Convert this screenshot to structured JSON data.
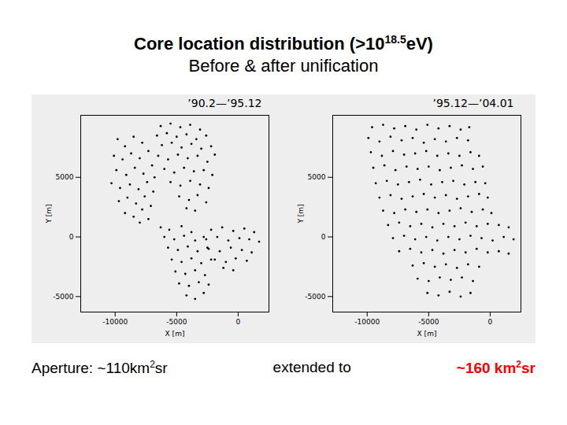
{
  "slide": {
    "title": [
      {
        "text": "Core location distribution (>10"
      },
      {
        "text": "18.5",
        "sup": true
      },
      {
        "text": "eV)"
      }
    ],
    "subtitle": "Before & after unification",
    "caption": [
      {
        "segments": [
          {
            "text": "Aperture: ~110km"
          },
          {
            "text": "2",
            "sup": true
          },
          {
            "text": "sr"
          }
        ]
      },
      {
        "segments": [
          {
            "text": "extended to"
          }
        ]
      },
      {
        "segments": [
          {
            "text": "~160 km"
          },
          {
            "text": "2",
            "sup": true
          },
          {
            "text": "sr"
          }
        ],
        "color": "#ff0000"
      }
    ]
  },
  "chart_data": [
    {
      "type": "scatter",
      "title": "’90.2—’95.12",
      "x_label": "X [m]",
      "y_label": "Y [m]",
      "color": "#000000",
      "marker": "circle",
      "xlim": [
        -12800,
        2500
      ],
      "ylim": [
        -6300,
        10200
      ],
      "xticks": [
        -10000,
        -5000,
        0
      ],
      "yticks": [
        -5000,
        0,
        5000
      ],
      "x": [
        -9800,
        -9200,
        -8500,
        -7800,
        -10100,
        -9400,
        -8700,
        -8000,
        -7300,
        -9900,
        -9100,
        -8400,
        -7700,
        -7000,
        -10300,
        -9600,
        -8800,
        -8100,
        -7400,
        -6800,
        -9700,
        -9000,
        -8300,
        -7600,
        -6900,
        -9200,
        -8500,
        -7800,
        -7100,
        -8000,
        -7300,
        -6300,
        -5500,
        -4700,
        -3900,
        -3100,
        -6600,
        -5800,
        -5000,
        -4200,
        -3400,
        -2600,
        -6200,
        -5400,
        -4600,
        -3800,
        -3000,
        -2200,
        -6500,
        -5700,
        -4900,
        -4100,
        -3300,
        -2500,
        -1900,
        -6000,
        -5200,
        -4400,
        -3600,
        -2800,
        -2100,
        -5500,
        -4700,
        -3900,
        -3100,
        -2400,
        -4800,
        -4000,
        -3300,
        -2600,
        -4200,
        -3500,
        -6300,
        -5600,
        -4600,
        -3800,
        -6000,
        -5200,
        -4400,
        -3500,
        -2800,
        -5700,
        -4900,
        -4100,
        -3300,
        -2500,
        -5400,
        -4600,
        -3800,
        -3000,
        -2200,
        -5100,
        -4300,
        -3500,
        -2700,
        -4800,
        -4000,
        -3200,
        -2400,
        -4200,
        -3500,
        -2800,
        -2200,
        -1300,
        -400,
        500,
        1300,
        -2600,
        -1700,
        -800,
        100,
        900,
        1700,
        -2400,
        -1500,
        -600,
        300,
        1100,
        -1900,
        -1000,
        -200,
        700,
        -1200,
        -400
      ],
      "values": [
        8200,
        7600,
        8400,
        7900,
        6800,
        6500,
        7000,
        6600,
        7200,
        5600,
        5200,
        5800,
        5300,
        6000,
        4500,
        4100,
        4400,
        4000,
        4600,
        5000,
        3000,
        3300,
        2800,
        3400,
        3800,
        2000,
        1700,
        2300,
        2600,
        1200,
        1500,
        9300,
        9500,
        9200,
        9400,
        9000,
        8500,
        8700,
        8400,
        8600,
        8200,
        8500,
        7700,
        7900,
        7500,
        7800,
        7400,
        7600,
        6800,
        6500,
        6900,
        6600,
        6800,
        6300,
        6900,
        5700,
        5400,
        5800,
        5500,
        5600,
        5200,
        4600,
        4300,
        4700,
        4400,
        4100,
        3400,
        3100,
        3500,
        2900,
        2400,
        2200,
        800,
        600,
        900,
        400,
        0,
        -200,
        100,
        -300,
        0,
        -900,
        -1100,
        -800,
        -1200,
        -900,
        -1900,
        -2100,
        -1800,
        -2200,
        -1900,
        -2900,
        -3100,
        -2800,
        -3200,
        -3900,
        -4100,
        -3800,
        -4000,
        -4900,
        -5200,
        -4700,
        600,
        800,
        500,
        700,
        400,
        -200,
        0,
        -300,
        -100,
        -200,
        -400,
        -1000,
        -1200,
        -900,
        -1100,
        -1300,
        -1900,
        -2100,
        -1800,
        -2000,
        -2600,
        -2800
      ]
    },
    {
      "type": "scatter",
      "title": "’95.12—’04.01",
      "x_label": "X [m]",
      "y_label": "Y [m]",
      "color": "#000000",
      "marker": "circle",
      "xlim": [
        -12800,
        2500
      ],
      "ylim": [
        -6300,
        10200
      ],
      "xticks": [
        -10000,
        -5000,
        0
      ],
      "yticks": [
        -5000,
        0,
        5000
      ],
      "x": [
        -9600,
        -8700,
        -7800,
        -6900,
        -6000,
        -5100,
        -4200,
        -3300,
        -2400,
        -1700,
        -9900,
        -9000,
        -8100,
        -7200,
        -6300,
        -5400,
        -4500,
        -3600,
        -2700,
        -1800,
        -9700,
        -8800,
        -7900,
        -7000,
        -6100,
        -5200,
        -4300,
        -3400,
        -2500,
        -1600,
        -900,
        -9500,
        -8600,
        -7700,
        -6800,
        -5900,
        -5000,
        -4100,
        -3200,
        -2300,
        -1400,
        -600,
        -9300,
        -8400,
        -7500,
        -6600,
        -5700,
        -4800,
        -3900,
        -3000,
        -2100,
        -1200,
        -400,
        -9000,
        -8100,
        -7200,
        -6300,
        -5400,
        -4500,
        -3600,
        -2700,
        -1800,
        -900,
        -200,
        -8700,
        -7800,
        -6900,
        -6000,
        -5100,
        -4200,
        -3300,
        -2400,
        -1500,
        -600,
        100,
        -8300,
        -7400,
        -6500,
        -5600,
        -4700,
        -3800,
        -2900,
        -2000,
        -1100,
        -200,
        700,
        1500,
        -7900,
        -7000,
        -6100,
        -5200,
        -4300,
        -3400,
        -2500,
        -1600,
        -700,
        200,
        1100,
        1900,
        -7400,
        -6500,
        -5600,
        -4700,
        -3800,
        -2900,
        -2000,
        -1100,
        -200,
        700,
        1500,
        -6300,
        -5400,
        -4500,
        -3600,
        -2700,
        -1800,
        -900,
        -5900,
        -5000,
        -4100,
        -3200,
        -2300,
        -1400,
        -5100,
        -4200,
        -3300,
        -2400,
        -1600
      ],
      "values": [
        9200,
        9400,
        9100,
        9300,
        9000,
        9400,
        9100,
        9300,
        9000,
        9200,
        8300,
        8000,
        8400,
        8100,
        8300,
        7900,
        8200,
        8000,
        8300,
        8100,
        7100,
        6800,
        7200,
        6900,
        7000,
        7200,
        6800,
        7000,
        6800,
        7100,
        6800,
        5800,
        6000,
        5600,
        5900,
        5700,
        5900,
        5600,
        5800,
        6000,
        5700,
        5900,
        4500,
        4700,
        4400,
        4600,
        4800,
        4400,
        4600,
        4700,
        4400,
        4600,
        4500,
        3300,
        3500,
        3200,
        3400,
        3600,
        3300,
        3500,
        3200,
        3400,
        3600,
        3300,
        2200,
        2000,
        2300,
        2100,
        2300,
        2000,
        2200,
        2400,
        2100,
        2300,
        2000,
        1000,
        1200,
        900,
        1100,
        800,
        1100,
        900,
        1200,
        900,
        1100,
        1000,
        800,
        -100,
        100,
        -200,
        0,
        -300,
        0,
        -200,
        100,
        -100,
        -300,
        0,
        -200,
        -1200,
        -1000,
        -1300,
        -1100,
        -1400,
        -1100,
        -1300,
        -1000,
        -1300,
        -1200,
        -1400,
        -2400,
        -2200,
        -2500,
        -2300,
        -2600,
        -2300,
        -2500,
        -3500,
        -3700,
        -3400,
        -3600,
        -3400,
        -3700,
        -4700,
        -4900,
        -4600,
        -5000,
        -4700
      ]
    }
  ]
}
